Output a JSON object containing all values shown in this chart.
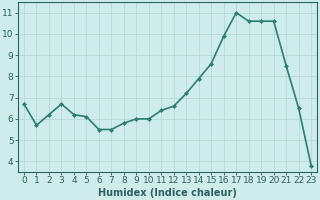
{
  "x": [
    0,
    1,
    2,
    3,
    4,
    5,
    6,
    7,
    8,
    9,
    10,
    11,
    12,
    13,
    14,
    15,
    16,
    17,
    18,
    19,
    20,
    21,
    22,
    23
  ],
  "y": [
    6.7,
    5.7,
    6.2,
    6.7,
    6.2,
    6.1,
    5.5,
    5.5,
    5.8,
    6.0,
    6.0,
    6.4,
    6.6,
    7.2,
    7.9,
    8.6,
    9.9,
    11.0,
    10.6,
    10.6,
    10.6,
    8.5,
    6.5,
    3.8
  ],
  "line_color": "#2e7d6e",
  "marker": "D",
  "marker_size": 2.0,
  "bg_color": "#ceecea",
  "grid_color": "#b8d8d4",
  "xlabel": "Humidex (Indice chaleur)",
  "ylim": [
    3.5,
    11.5
  ],
  "xlim": [
    -0.5,
    23.5
  ],
  "yticks": [
    4,
    5,
    6,
    7,
    8,
    9,
    10,
    11
  ],
  "xticks": [
    0,
    1,
    2,
    3,
    4,
    5,
    6,
    7,
    8,
    9,
    10,
    11,
    12,
    13,
    14,
    15,
    16,
    17,
    18,
    19,
    20,
    21,
    22,
    23
  ],
  "tick_color": "#2e6060",
  "spine_color": "#2e6060",
  "xlabel_fontsize": 7,
  "tick_fontsize": 6.5,
  "linewidth": 1.2
}
